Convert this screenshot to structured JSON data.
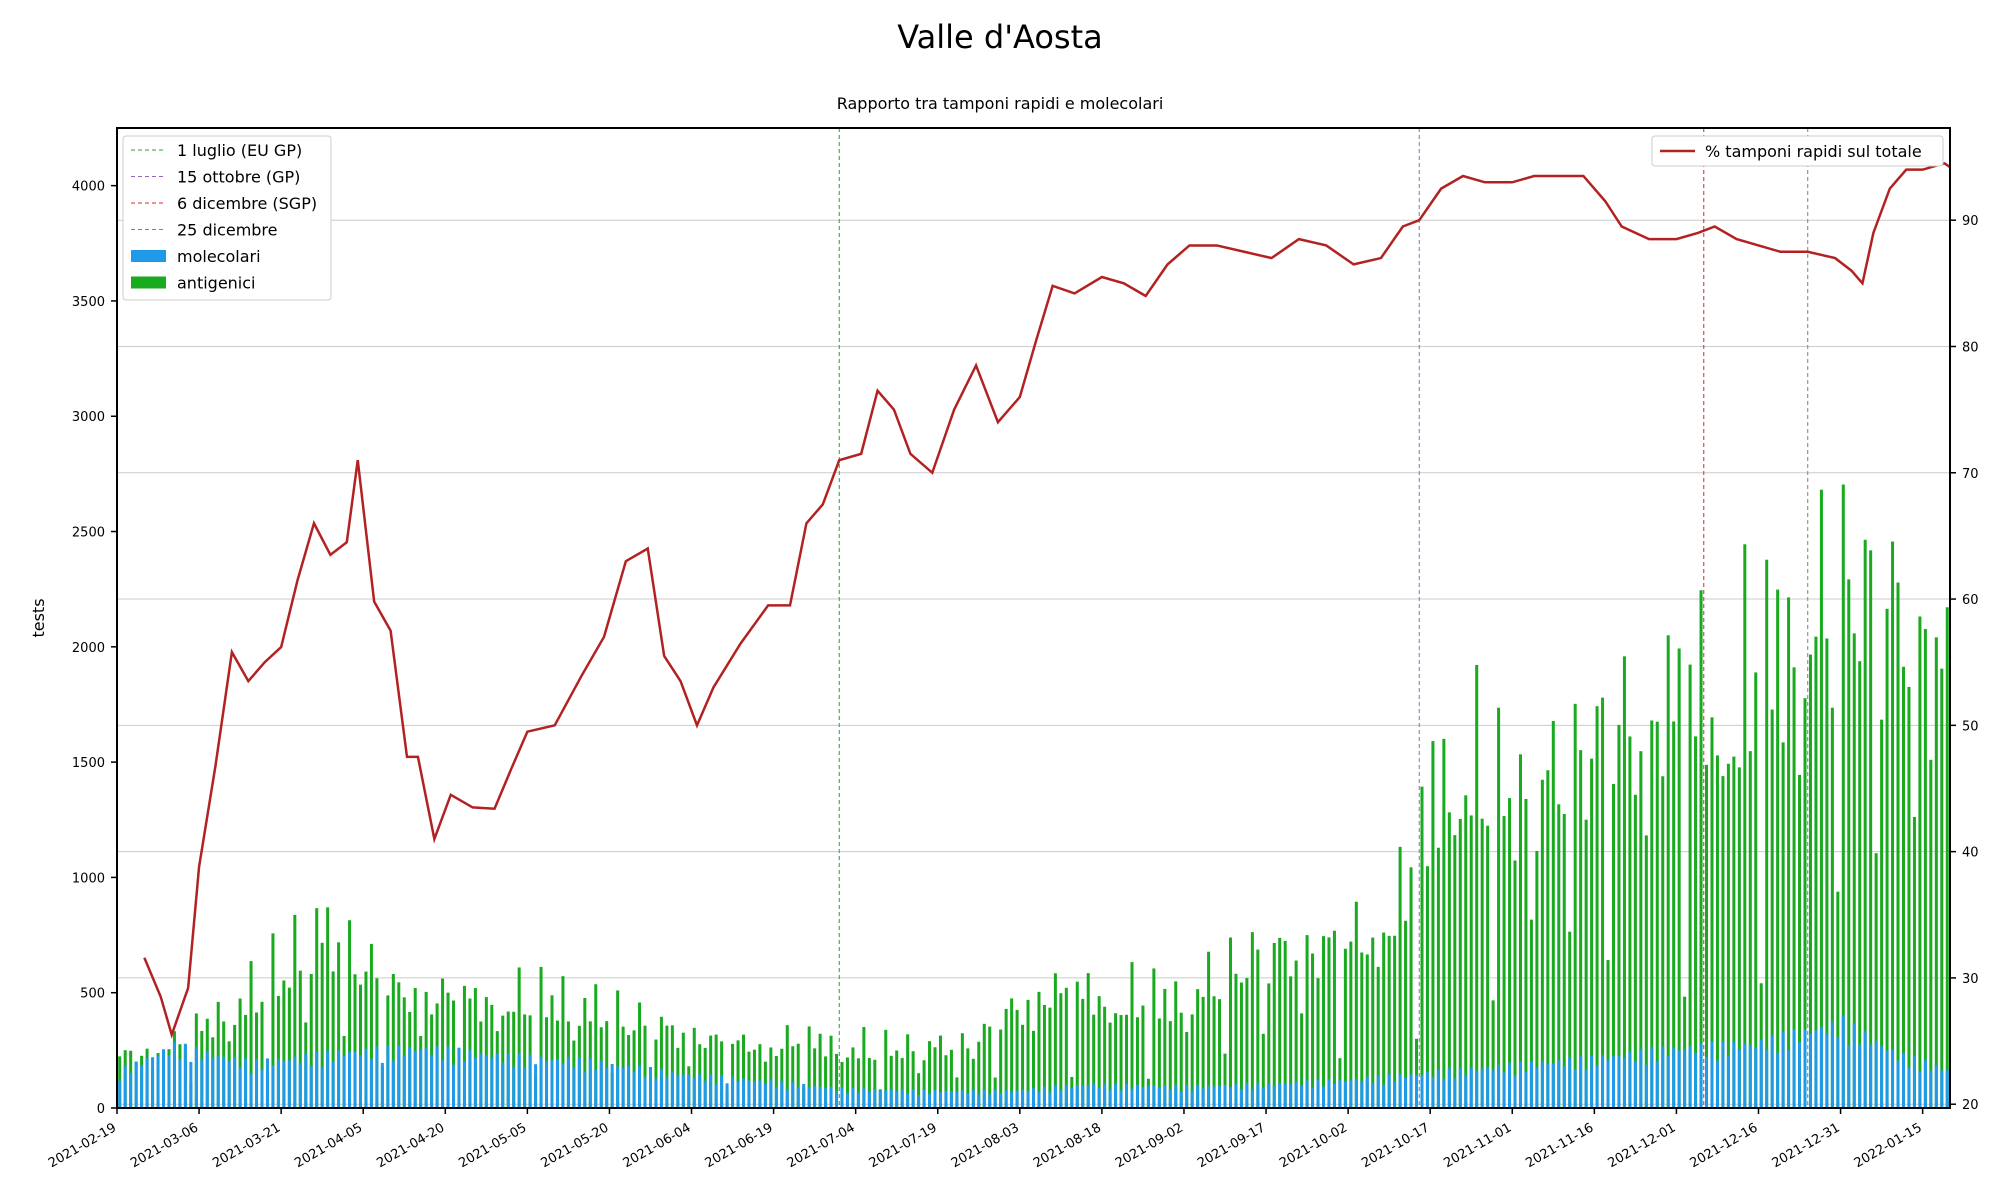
{
  "chart_data": {
    "type": "bar",
    "title": "Valle d'Aosta",
    "subtitle": "Rapporto tra tamponi rapidi e molecolari",
    "ylabel": "tests",
    "ylim": [
      0,
      4250
    ],
    "y2lim": [
      19.7,
      97.3
    ],
    "yticks": [
      0,
      500,
      1000,
      1500,
      2000,
      2500,
      3000,
      3500,
      4000
    ],
    "y2ticks": [
      20,
      30,
      40,
      50,
      60,
      70,
      80,
      90
    ],
    "x_start": "2021-02-19",
    "x_end": "2022-01-20",
    "xtick_labels": [
      "2021-02-19",
      "2021-03-06",
      "2021-03-21",
      "2021-04-05",
      "2021-04-20",
      "2021-05-05",
      "2021-05-20",
      "2021-06-04",
      "2021-06-19",
      "2021-07-04",
      "2021-07-19",
      "2021-08-03",
      "2021-08-18",
      "2021-09-02",
      "2021-09-17",
      "2021-10-02",
      "2021-10-17",
      "2021-11-01",
      "2021-11-16",
      "2021-12-01",
      "2021-12-16",
      "2021-12-31",
      "2022-01-15"
    ],
    "grid": true,
    "legend_left_position": "top-left",
    "legend_right_position": "top-right",
    "vlines": [
      {
        "date": "2021-07-01",
        "label": "1 luglio (EU GP)",
        "color": "#2ca02c"
      },
      {
        "date": "2021-10-15",
        "label": "15 ottobre (GP)",
        "color": "#9467bd"
      },
      {
        "date": "2021-12-06",
        "label": "6 dicembre (SGP)",
        "color": "#d62728"
      },
      {
        "date": "2021-12-25",
        "label": "25 dicembre",
        "color": "#7f7f7f"
      }
    ],
    "series": [
      {
        "name": "molecolari",
        "type": "bar",
        "color": "#1f9ae8",
        "points": [
          [
            "2021-02-19",
            170
          ],
          [
            "2021-03-01",
            290
          ],
          [
            "2021-03-15",
            210
          ],
          [
            "2021-04-01",
            260
          ],
          [
            "2021-04-15",
            280
          ],
          [
            "2021-05-01",
            240
          ],
          [
            "2021-05-15",
            220
          ],
          [
            "2021-06-01",
            160
          ],
          [
            "2021-06-15",
            130
          ],
          [
            "2021-07-01",
            90
          ],
          [
            "2021-07-15",
            80
          ],
          [
            "2021-08-01",
            80
          ],
          [
            "2021-08-15",
            110
          ],
          [
            "2021-09-01",
            100
          ],
          [
            "2021-09-15",
            110
          ],
          [
            "2021-10-01",
            130
          ],
          [
            "2021-10-15",
            160
          ],
          [
            "2021-11-01",
            200
          ],
          [
            "2021-11-15",
            230
          ],
          [
            "2021-12-01",
            280
          ],
          [
            "2021-12-15",
            300
          ],
          [
            "2021-12-31",
            400
          ],
          [
            "2022-01-10",
            250
          ],
          [
            "2022-01-20",
            170
          ]
        ]
      },
      {
        "name": "antigenici",
        "type": "bar",
        "color": "#1aaa20",
        "points": [
          [
            "2021-02-19",
            280
          ],
          [
            "2021-03-01",
            350
          ],
          [
            "2021-03-15",
            650
          ],
          [
            "2021-03-28",
            1000
          ],
          [
            "2021-04-10",
            650
          ],
          [
            "2021-04-25",
            600
          ],
          [
            "2021-05-10",
            630
          ],
          [
            "2021-05-25",
            480
          ],
          [
            "2021-06-10",
            350
          ],
          [
            "2021-06-25",
            380
          ],
          [
            "2021-07-10",
            340
          ],
          [
            "2021-07-25",
            350
          ],
          [
            "2021-08-05",
            640
          ],
          [
            "2021-08-20",
            640
          ],
          [
            "2021-09-01",
            620
          ],
          [
            "2021-09-15",
            850
          ],
          [
            "2021-10-01",
            900
          ],
          [
            "2021-10-12",
            1200
          ],
          [
            "2021-10-20",
            2100
          ],
          [
            "2021-11-01",
            1700
          ],
          [
            "2021-11-15",
            2000
          ],
          [
            "2021-12-01",
            2300
          ],
          [
            "2021-12-15",
            2500
          ],
          [
            "2021-12-31",
            2900
          ],
          [
            "2022-01-10",
            2750
          ],
          [
            "2022-01-20",
            2350
          ]
        ]
      },
      {
        "name": "% tamponi rapidi sul totale",
        "type": "line",
        "axis": "right",
        "color": "#b22222",
        "points": [
          [
            "2021-02-24",
            31.6
          ],
          [
            "2021-02-27",
            28.5
          ],
          [
            "2021-03-01",
            25.5
          ],
          [
            "2021-03-04",
            29.2
          ],
          [
            "2021-03-06",
            38.8
          ],
          [
            "2021-03-09",
            46.8
          ],
          [
            "2021-03-12",
            55.8
          ],
          [
            "2021-03-15",
            53.5
          ],
          [
            "2021-03-18",
            55.0
          ],
          [
            "2021-03-21",
            56.2
          ],
          [
            "2021-03-24",
            61.5
          ],
          [
            "2021-03-27",
            66.0
          ],
          [
            "2021-03-30",
            63.5
          ],
          [
            "2021-04-02",
            64.5
          ],
          [
            "2021-04-04",
            71.0
          ],
          [
            "2021-04-07",
            59.8
          ],
          [
            "2021-04-10",
            57.5
          ],
          [
            "2021-04-13",
            47.5
          ],
          [
            "2021-04-15",
            47.5
          ],
          [
            "2021-04-18",
            41.0
          ],
          [
            "2021-04-21",
            44.5
          ],
          [
            "2021-04-25",
            43.5
          ],
          [
            "2021-04-29",
            43.4
          ],
          [
            "2021-05-02",
            46.5
          ],
          [
            "2021-05-05",
            49.5
          ],
          [
            "2021-05-10",
            50.0
          ],
          [
            "2021-05-15",
            54.0
          ],
          [
            "2021-05-19",
            57.0
          ],
          [
            "2021-05-23",
            63.0
          ],
          [
            "2021-05-27",
            64.0
          ],
          [
            "2021-05-30",
            55.5
          ],
          [
            "2021-06-02",
            53.5
          ],
          [
            "2021-06-05",
            50.0
          ],
          [
            "2021-06-08",
            53.0
          ],
          [
            "2021-06-13",
            56.5
          ],
          [
            "2021-06-18",
            59.5
          ],
          [
            "2021-06-22",
            59.5
          ],
          [
            "2021-06-25",
            66.0
          ],
          [
            "2021-06-28",
            67.5
          ],
          [
            "2021-07-01",
            71.0
          ],
          [
            "2021-07-05",
            71.5
          ],
          [
            "2021-07-08",
            76.5
          ],
          [
            "2021-07-11",
            75.0
          ],
          [
            "2021-07-14",
            71.5
          ],
          [
            "2021-07-18",
            70.0
          ],
          [
            "2021-07-22",
            75.0
          ],
          [
            "2021-07-26",
            78.5
          ],
          [
            "2021-07-30",
            74.0
          ],
          [
            "2021-08-03",
            76.0
          ],
          [
            "2021-08-06",
            80.5
          ],
          [
            "2021-08-09",
            84.8
          ],
          [
            "2021-08-13",
            84.2
          ],
          [
            "2021-08-18",
            85.5
          ],
          [
            "2021-08-22",
            85.0
          ],
          [
            "2021-08-26",
            84.0
          ],
          [
            "2021-08-30",
            86.5
          ],
          [
            "2021-09-03",
            88.0
          ],
          [
            "2021-09-08",
            88.0
          ],
          [
            "2021-09-13",
            87.5
          ],
          [
            "2021-09-18",
            87.0
          ],
          [
            "2021-09-23",
            88.5
          ],
          [
            "2021-09-28",
            88.0
          ],
          [
            "2021-10-03",
            86.5
          ],
          [
            "2021-10-08",
            87.0
          ],
          [
            "2021-10-12",
            89.5
          ],
          [
            "2021-10-15",
            90.0
          ],
          [
            "2021-10-19",
            92.5
          ],
          [
            "2021-10-23",
            93.5
          ],
          [
            "2021-10-27",
            93.0
          ],
          [
            "2021-11-01",
            93.0
          ],
          [
            "2021-11-05",
            93.5
          ],
          [
            "2021-11-10",
            93.5
          ],
          [
            "2021-11-14",
            93.5
          ],
          [
            "2021-11-18",
            91.5
          ],
          [
            "2021-11-21",
            89.5
          ],
          [
            "2021-11-26",
            88.5
          ],
          [
            "2021-12-01",
            88.5
          ],
          [
            "2021-12-05",
            89.0
          ],
          [
            "2021-12-08",
            89.5
          ],
          [
            "2021-12-12",
            88.5
          ],
          [
            "2021-12-16",
            88.0
          ],
          [
            "2021-12-20",
            87.5
          ],
          [
            "2021-12-25",
            87.5
          ],
          [
            "2021-12-30",
            87.0
          ],
          [
            "2022-01-02",
            86.0
          ],
          [
            "2022-01-04",
            85.0
          ],
          [
            "2022-01-06",
            89.0
          ],
          [
            "2022-01-09",
            92.5
          ],
          [
            "2022-01-12",
            94.0
          ],
          [
            "2022-01-15",
            94.0
          ],
          [
            "2022-01-19",
            94.5
          ],
          [
            "2022-01-20",
            94.2
          ]
        ]
      }
    ]
  }
}
